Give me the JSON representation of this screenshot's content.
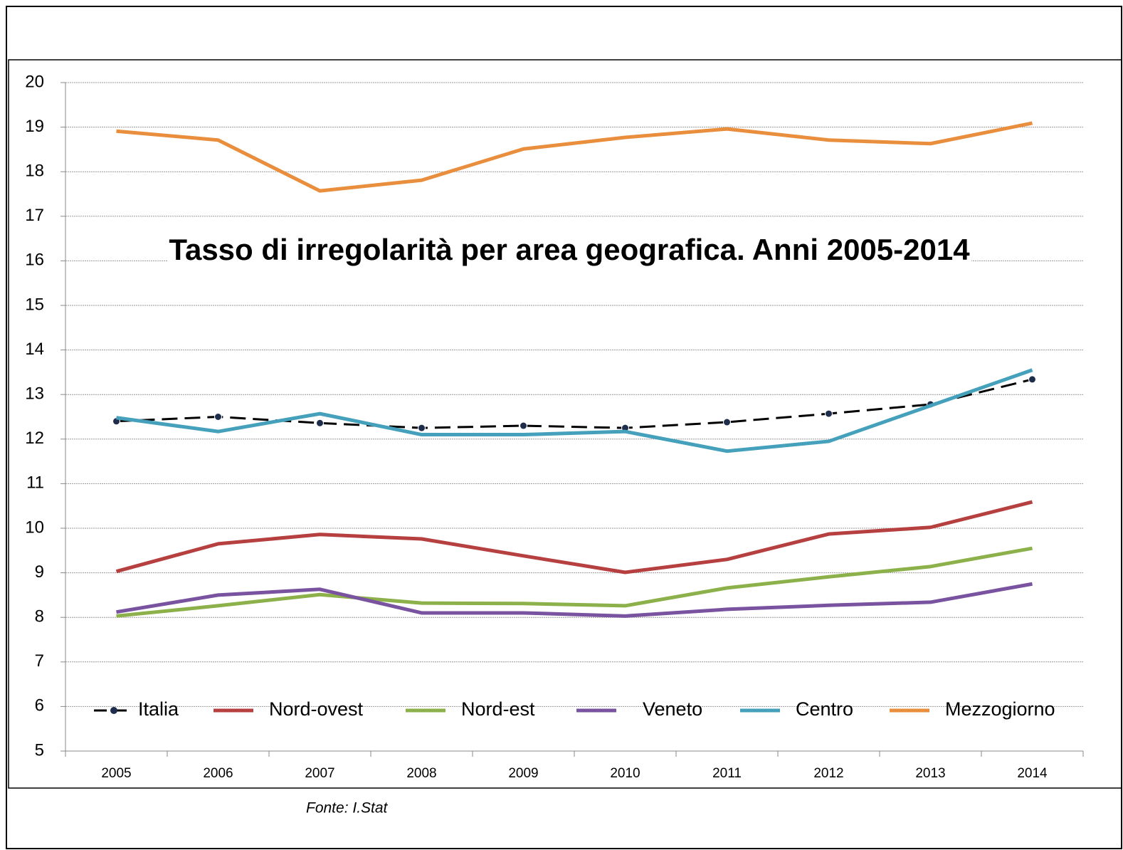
{
  "chart_data": {
    "type": "line",
    "title": "Tasso di irregolarità per area geografica. Anni 2005-2014",
    "source": "Fonte: I.Stat",
    "categories": [
      "2005",
      "2006",
      "2007",
      "2008",
      "2009",
      "2010",
      "2011",
      "2012",
      "2013",
      "2014"
    ],
    "ylim": [
      5,
      20
    ],
    "yticks": [
      5,
      6,
      7,
      8,
      9,
      10,
      11,
      12,
      13,
      14,
      15,
      16,
      17,
      18,
      19,
      20
    ],
    "grid": true,
    "legend": "bottom",
    "series": [
      {
        "name": "Italia",
        "color": "#000000",
        "dashed": true,
        "markers": true,
        "values": [
          12.4,
          12.5,
          12.36,
          12.25,
          12.3,
          12.25,
          12.38,
          12.57,
          12.78,
          13.34
        ]
      },
      {
        "name": "Nord-ovest",
        "color": "#b5403f",
        "values": [
          9.03,
          9.65,
          9.86,
          9.76,
          9.38,
          9.01,
          9.3,
          9.87,
          10.02,
          10.59
        ]
      },
      {
        "name": "Nord-est",
        "color": "#8db14a",
        "values": [
          8.03,
          8.26,
          8.51,
          8.32,
          8.31,
          8.26,
          8.66,
          8.91,
          9.14,
          9.55
        ]
      },
      {
        "name": "Veneto",
        "color": "#7a53a0",
        "values": [
          8.12,
          8.5,
          8.63,
          8.1,
          8.1,
          8.03,
          8.18,
          8.27,
          8.34,
          8.75
        ]
      },
      {
        "name": "Centro",
        "color": "#45a0bc",
        "values": [
          12.48,
          12.17,
          12.57,
          12.1,
          12.1,
          12.17,
          11.73,
          11.95,
          12.75,
          13.55
        ]
      },
      {
        "name": "Mezzogiorno",
        "color": "#e88e3c",
        "values": [
          18.91,
          18.71,
          17.57,
          17.81,
          18.51,
          18.77,
          18.96,
          18.71,
          18.63,
          19.09
        ]
      }
    ]
  }
}
